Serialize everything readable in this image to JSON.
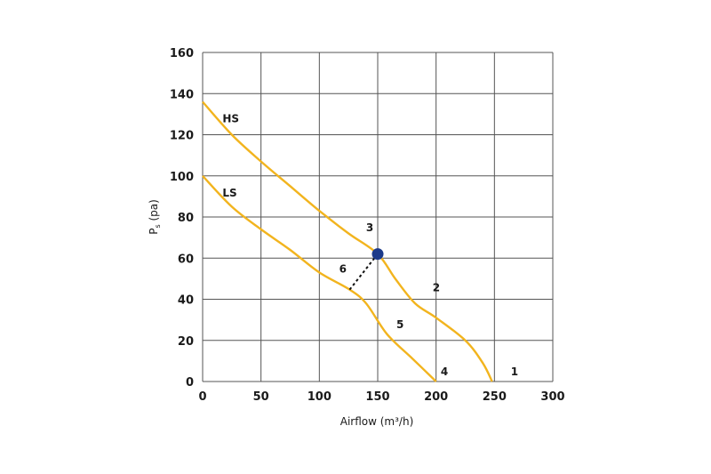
{
  "chart_data": {
    "type": "line",
    "xlabel": "Airflow (m³/h)",
    "ylabel": {
      "main": "P",
      "sub": "s",
      "suffix": " (pa)"
    },
    "xlim": [
      0,
      300
    ],
    "ylim": [
      0,
      160
    ],
    "xticks": [
      0,
      50,
      100,
      150,
      200,
      250,
      300
    ],
    "yticks": [
      0,
      20,
      40,
      60,
      80,
      100,
      120,
      140,
      160
    ],
    "grid": true,
    "series": [
      {
        "name": "HS",
        "color": "#f2b41e",
        "points": [
          [
            0,
            136
          ],
          [
            25,
            120
          ],
          [
            50,
            107
          ],
          [
            75,
            95
          ],
          [
            100,
            83
          ],
          [
            125,
            72
          ],
          [
            150,
            62
          ],
          [
            165,
            50
          ],
          [
            182,
            38
          ],
          [
            200,
            31
          ],
          [
            225,
            20
          ],
          [
            240,
            9
          ],
          [
            248,
            0
          ]
        ]
      },
      {
        "name": "LS",
        "color": "#f2b41e",
        "points": [
          [
            0,
            100
          ],
          [
            25,
            85
          ],
          [
            50,
            74
          ],
          [
            75,
            64
          ],
          [
            100,
            53
          ],
          [
            125,
            45
          ],
          [
            140,
            38
          ],
          [
            158,
            23
          ],
          [
            180,
            11
          ],
          [
            200,
            0
          ]
        ]
      }
    ],
    "operating_point": {
      "x": 150,
      "y": 62,
      "color": "#1c3a8a"
    },
    "leader_line": {
      "from": [
        150,
        62
      ],
      "to": [
        125,
        44
      ]
    },
    "annotations": [
      {
        "text": "HS",
        "x": 17,
        "y": 126
      },
      {
        "text": "LS",
        "x": 17,
        "y": 90
      },
      {
        "text": "3",
        "x": 140,
        "y": 73
      },
      {
        "text": "6",
        "x": 117,
        "y": 53
      },
      {
        "text": "2",
        "x": 197,
        "y": 44
      },
      {
        "text": "5",
        "x": 166,
        "y": 26
      },
      {
        "text": "4",
        "x": 204,
        "y": 3
      },
      {
        "text": "1",
        "x": 264,
        "y": 3
      }
    ]
  }
}
